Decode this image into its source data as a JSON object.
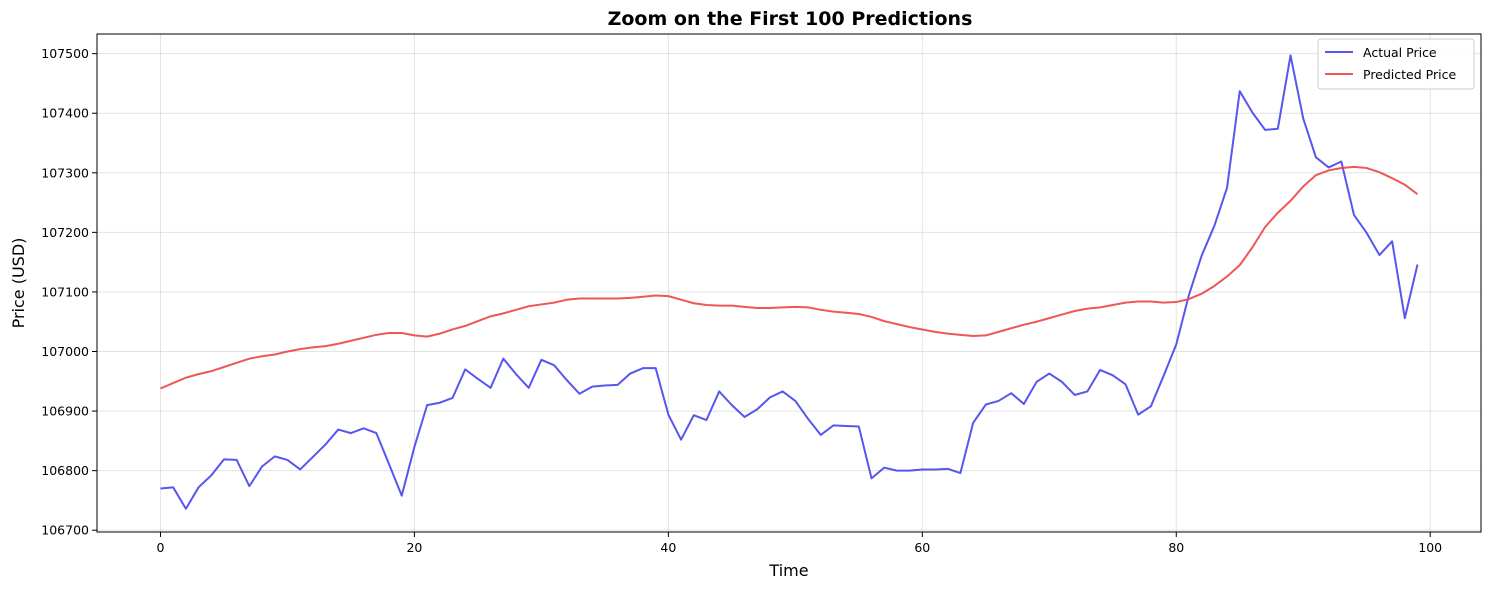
{
  "chart_data": {
    "type": "line",
    "title": "Zoom on the First 100 Predictions",
    "xlabel": "Time",
    "ylabel": "Price (USD)",
    "xlim": [
      -5,
      104
    ],
    "ylim": [
      106697,
      107533
    ],
    "xticks": [
      0,
      20,
      40,
      60,
      80,
      100
    ],
    "yticks": [
      106700,
      106800,
      106900,
      107000,
      107100,
      107200,
      107300,
      107400,
      107500
    ],
    "grid": true,
    "legend_position": "top-right",
    "series": [
      {
        "name": "Actual Price",
        "color": "#4444ee",
        "values": [
          106770,
          106772,
          106736,
          106772,
          106792,
          106819,
          106818,
          106774,
          106807,
          106824,
          106818,
          106802,
          106823,
          106844,
          106869,
          106863,
          106871,
          106863,
          106811,
          106758,
          106840,
          106910,
          106914,
          106922,
          106970,
          106954,
          106939,
          106988,
          106962,
          106939,
          106986,
          106977,
          106952,
          106929,
          106941,
          106943,
          106944,
          106963,
          106972,
          106972,
          106894,
          106852,
          106893,
          106885,
          106933,
          106910,
          106890,
          106903,
          106923,
          106933,
          106917,
          106887,
          106860,
          106876,
          106875,
          106874,
          106787,
          106805,
          106800,
          106800,
          106802,
          106802,
          106803,
          106796,
          106880,
          106911,
          106917,
          106930,
          106912,
          106949,
          106963,
          106949,
          106927,
          106933,
          106969,
          106960,
          106945,
          106894,
          106908,
          106959,
          107012,
          107095,
          107161,
          107211,
          107275,
          107437,
          107401,
          107372,
          107374,
          107497,
          107391,
          107326,
          107309,
          107319,
          107229,
          107199,
          107162,
          107185,
          107056,
          107146
        ]
      },
      {
        "name": "Predicted Price",
        "color": "#ee4444",
        "values": [
          106938,
          106947,
          106956,
          106962,
          106967,
          106974,
          106981,
          106988,
          106992,
          106995,
          107000,
          107004,
          107007,
          107009,
          107013,
          107018,
          107023,
          107028,
          107031,
          107031,
          107027,
          107025,
          107030,
          107037,
          107043,
          107051,
          107059,
          107064,
          107070,
          107076,
          107079,
          107082,
          107087,
          107089,
          107089,
          107089,
          107089,
          107090,
          107092,
          107094,
          107093,
          107087,
          107081,
          107078,
          107077,
          107077,
          107075,
          107073,
          107073,
          107074,
          107075,
          107074,
          107070,
          107067,
          107065,
          107063,
          107058,
          107051,
          107046,
          107041,
          107037,
          107033,
          107030,
          107028,
          107026,
          107027,
          107033,
          107039,
          107045,
          107050,
          107056,
          107062,
          107068,
          107072,
          107074,
          107078,
          107082,
          107084,
          107084,
          107082,
          107083,
          107088,
          107097,
          107110,
          107126,
          107145,
          107175,
          107209,
          107233,
          107253,
          107277,
          107296,
          107304,
          107308,
          107310,
          107308,
          107301,
          107291,
          107280,
          107264
        ]
      }
    ]
  }
}
